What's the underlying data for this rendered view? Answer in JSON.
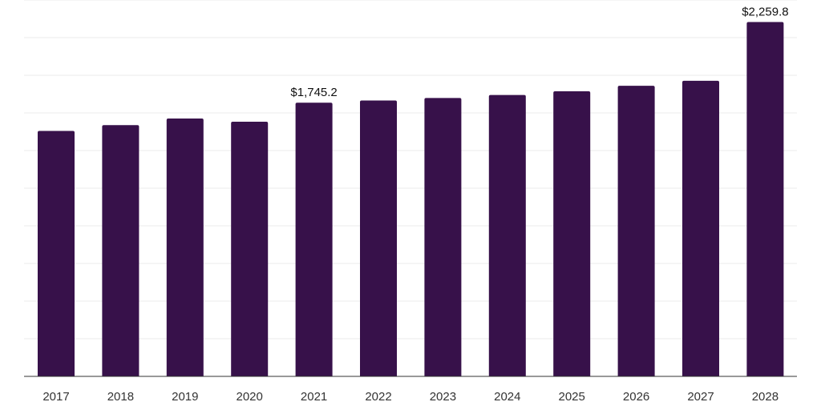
{
  "chart_data": {
    "type": "bar",
    "title": "",
    "xlabel": "",
    "ylabel": "",
    "categories": [
      "2017",
      "2018",
      "2019",
      "2020",
      "2021",
      "2022",
      "2023",
      "2024",
      "2025",
      "2026",
      "2027",
      "2028"
    ],
    "values": [
      1565.0,
      1602.0,
      1644.0,
      1624.0,
      1745.2,
      1759.0,
      1775.0,
      1794.0,
      1818.0,
      1853.0,
      1885.0,
      2259.8
    ],
    "data_labels": [
      {
        "category": "2021",
        "text": "$1,745.2"
      },
      {
        "category": "2028",
        "text": "$2,259.8"
      }
    ],
    "ylim": [
      0,
      2400
    ],
    "gridlines": 9,
    "grid": true,
    "legend": "none",
    "bar_color": "#37114a",
    "axis_color": "#333333",
    "grid_color": "#ebebeb"
  }
}
